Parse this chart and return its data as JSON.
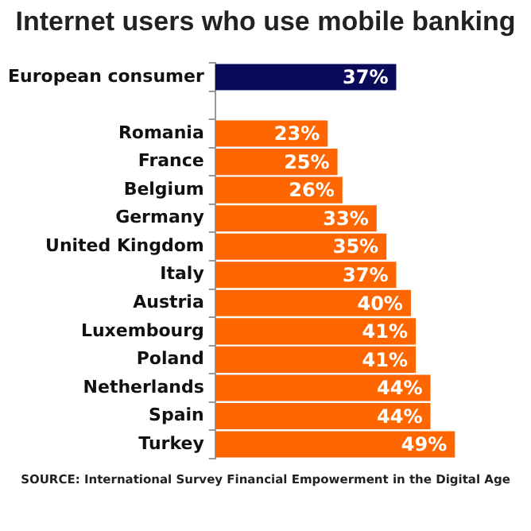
{
  "chart_data": {
    "type": "bar",
    "orientation": "horizontal",
    "title": "Internet users who use mobile banking",
    "categories": [
      "European consumer",
      null,
      "Romania",
      "France",
      "Belgium",
      "Germany",
      "United Kingdom",
      "Italy",
      "Austria",
      "Luxembourg",
      "Poland",
      "Netherlands",
      "Spain",
      "Turkey"
    ],
    "values": [
      37,
      null,
      23,
      25,
      26,
      33,
      35,
      37,
      40,
      41,
      41,
      44,
      44,
      49
    ],
    "value_labels": [
      "37%",
      null,
      "23%",
      "25%",
      "26%",
      "33%",
      "35%",
      "37%",
      "40%",
      "41%",
      "41%",
      "44%",
      "44%",
      "49%"
    ],
    "colors": [
      "#0a0a5a",
      null,
      "#ff6600",
      "#ff6600",
      "#ff6600",
      "#ff6600",
      "#ff6600",
      "#ff6600",
      "#ff6600",
      "#ff6600",
      "#ff6600",
      "#ff6600",
      "#ff6600",
      "#ff6600"
    ],
    "grid": false,
    "legend": false,
    "annotations": [
      "SOURCE: International Survey Financial Empowerment in the Digital Age"
    ]
  }
}
